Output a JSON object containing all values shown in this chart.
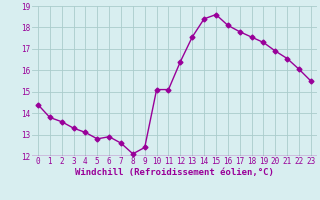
{
  "x": [
    0,
    1,
    2,
    3,
    4,
    5,
    6,
    7,
    8,
    9,
    10,
    11,
    12,
    13,
    14,
    15,
    16,
    17,
    18,
    19,
    20,
    21,
    22,
    23
  ],
  "y": [
    14.4,
    13.8,
    13.6,
    13.3,
    13.1,
    12.8,
    12.9,
    12.6,
    12.1,
    12.4,
    15.1,
    15.1,
    16.4,
    17.55,
    18.4,
    18.6,
    18.1,
    17.8,
    17.55,
    17.3,
    16.9,
    16.55,
    16.05,
    15.5
  ],
  "line_color": "#990099",
  "marker": "D",
  "marker_size": 2.5,
  "bg_color": "#d8eef0",
  "grid_color": "#aacccc",
  "xlabel": "Windchill (Refroidissement éolien,°C)",
  "xlabel_color": "#990099",
  "tick_color": "#990099",
  "ylim": [
    12,
    19
  ],
  "yticks": [
    12,
    13,
    14,
    15,
    16,
    17,
    18,
    19
  ],
  "xticks": [
    0,
    1,
    2,
    3,
    4,
    5,
    6,
    7,
    8,
    9,
    10,
    11,
    12,
    13,
    14,
    15,
    16,
    17,
    18,
    19,
    20,
    21,
    22,
    23
  ],
  "linewidth": 1.0,
  "xlabel_fontsize": 6.5,
  "tick_fontsize": 5.5
}
